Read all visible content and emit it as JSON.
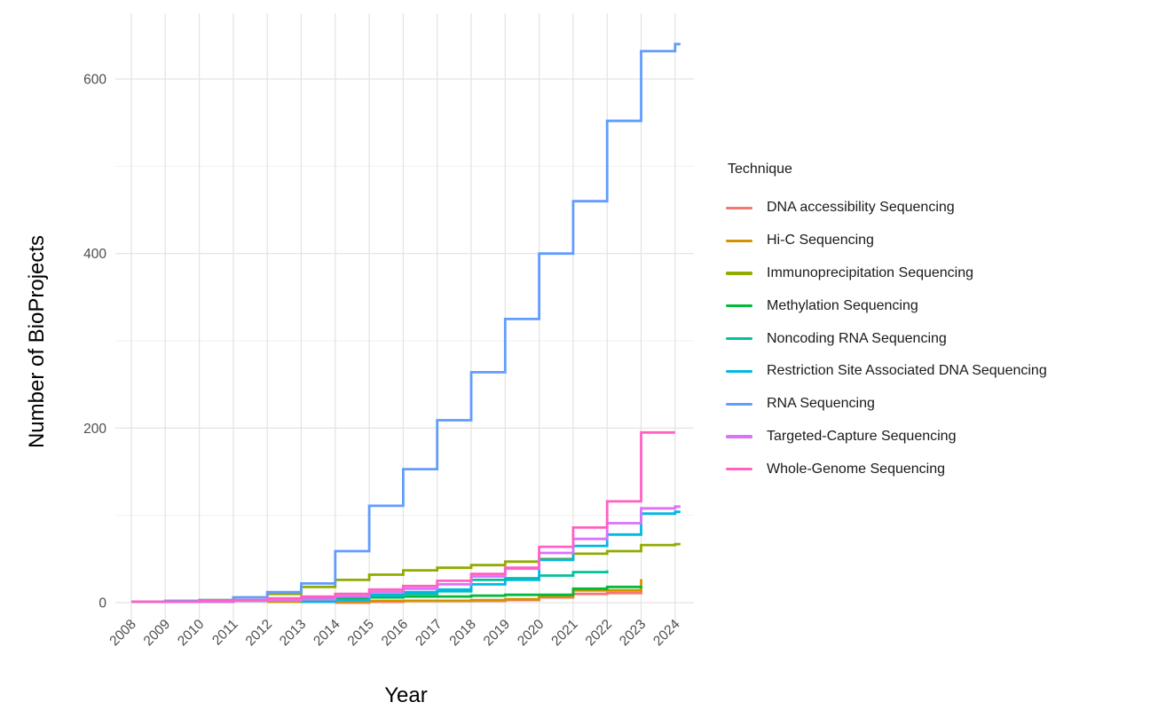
{
  "chart_data": {
    "type": "line",
    "step": true,
    "title": "",
    "xlabel": "Year",
    "ylabel": "Number of BioProjects",
    "x_ticks": [
      2008,
      2009,
      2010,
      2011,
      2012,
      2013,
      2014,
      2015,
      2016,
      2017,
      2018,
      2019,
      2020,
      2021,
      2022,
      2023,
      2024
    ],
    "y_ticks": [
      0,
      200,
      400,
      600
    ],
    "y_minor_ticks": [
      100,
      300,
      500
    ],
    "xlim": [
      2008,
      2024
    ],
    "ylim": [
      0,
      660
    ],
    "grid": "on",
    "legend": {
      "title": "Technique",
      "position": "right"
    },
    "series": [
      {
        "name": "DNA accessibility Sequencing",
        "color": "#F8766D",
        "start_year": 2014,
        "values": [
          0,
          1,
          2,
          2,
          2,
          3,
          6,
          10,
          11,
          13
        ]
      },
      {
        "name": "Hi-C Sequencing",
        "color": "#D39200",
        "start_year": 2012,
        "values": [
          1,
          1,
          1,
          2,
          2,
          2,
          3,
          4,
          7,
          14,
          14,
          27
        ]
      },
      {
        "name": "Immunoprecipitation Sequencing",
        "color": "#93AA00",
        "start_year": 2008,
        "values": [
          1,
          2,
          3,
          6,
          10,
          18,
          26,
          32,
          37,
          40,
          43,
          47,
          50,
          56,
          59,
          66,
          67
        ]
      },
      {
        "name": "Methylation Sequencing",
        "color": "#00BA38",
        "start_year": 2010,
        "values": [
          1,
          2,
          3,
          4,
          5,
          6,
          7,
          7,
          8,
          9,
          9,
          16,
          18,
          19
        ]
      },
      {
        "name": "Noncoding RNA Sequencing",
        "color": "#00C19F",
        "start_year": 2010,
        "values": [
          1,
          2,
          3,
          5,
          7,
          9,
          10,
          13,
          26,
          28,
          31,
          35,
          37
        ]
      },
      {
        "name": "Restriction Site Associated DNA Sequencing",
        "color": "#00B9E3",
        "start_year": 2013,
        "values": [
          1,
          3,
          8,
          12,
          15,
          21,
          26,
          49,
          65,
          78,
          102,
          104
        ]
      },
      {
        "name": "RNA Sequencing",
        "color": "#619CFF",
        "start_year": 2008,
        "values": [
          1,
          2,
          3,
          6,
          12,
          22,
          59,
          111,
          153,
          209,
          264,
          325,
          400,
          460,
          552,
          632,
          640
        ]
      },
      {
        "name": "Targeted-Capture Sequencing",
        "color": "#DB72FB",
        "start_year": 2009,
        "values": [
          1,
          1,
          2,
          3,
          4,
          7,
          12,
          16,
          21,
          30,
          39,
          57,
          73,
          91,
          108,
          110
        ]
      },
      {
        "name": "Whole-Genome Sequencing",
        "color": "#FF61C3",
        "start_year": 2008,
        "values": [
          1,
          1,
          2,
          3,
          5,
          7,
          10,
          15,
          19,
          25,
          33,
          40,
          64,
          86,
          116,
          195,
          195
        ]
      }
    ]
  }
}
